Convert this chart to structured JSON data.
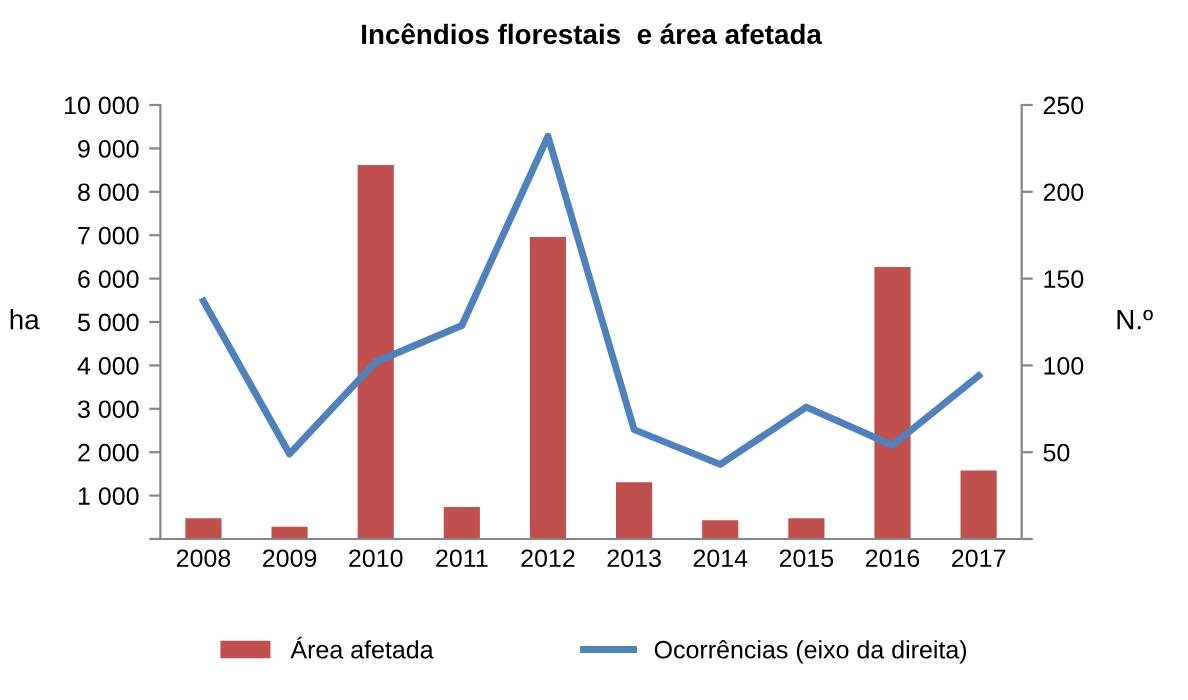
{
  "chart_data": {
    "type": "bar",
    "title": "Incêndios florestais  e área afetada",
    "ylabel": "ha",
    "y2label": "N.º",
    "categories": [
      "2008",
      "2009",
      "2010",
      "2011",
      "2012",
      "2013",
      "2014",
      "2015",
      "2016",
      "2017"
    ],
    "series": [
      {
        "name": "Área afetada",
        "color": "#c0504d",
        "values": [
          480,
          280,
          8620,
          740,
          6960,
          1310,
          430,
          480,
          6270,
          1580
        ]
      },
      {
        "name": "Ocorrências (eixo da direita)",
        "type": "line",
        "axis": "y2",
        "color": "#4f81bd",
        "values": [
          137,
          49,
          102,
          123,
          232,
          63,
          43,
          76,
          54,
          94
        ]
      }
    ],
    "ylim": [
      0,
      10000
    ],
    "yticks": [
      {
        "value": 0,
        "label": null
      },
      {
        "value": 1000,
        "label": "1 000"
      },
      {
        "value": 2000,
        "label": "2 000"
      },
      {
        "value": 3000,
        "label": "3 000"
      },
      {
        "value": 4000,
        "label": "4 000"
      },
      {
        "value": 5000,
        "label": "5 000"
      },
      {
        "value": 6000,
        "label": "6 000"
      },
      {
        "value": 7000,
        "label": "7 000"
      },
      {
        "value": 8000,
        "label": "8 000"
      },
      {
        "value": 9000,
        "label": "9 000"
      },
      {
        "value": 10000,
        "label": "10 000"
      }
    ],
    "y2lim": [
      0,
      250
    ],
    "y2ticks": [
      {
        "value": 0,
        "label": null
      },
      50,
      100,
      150,
      200,
      250
    ],
    "grid": false,
    "legend": "bottom",
    "marker": "none",
    "line_style": "solid"
  }
}
